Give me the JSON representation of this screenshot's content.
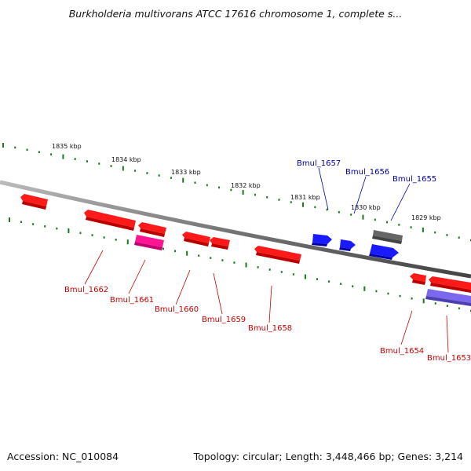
{
  "title": "Burkholderia multivorans ATCC 17616 chromosome 1, complete s...",
  "footer": {
    "accession": "Accession: NC_010084",
    "summary": "Topology: circular; Length: 3,448,466 bp; Genes: 3,214"
  },
  "colors": {
    "forward_label": "#0000aa",
    "reverse_label": "#cc0000",
    "gene_red": "#ff1a1a",
    "gene_blue": "#1a1aff",
    "gene_gray": "#666666",
    "gene_magenta": "#ff1493",
    "gene_slate": "#7b68ee",
    "tick_green": "#1a7a1a"
  },
  "kbp_labels": [
    "1835 kbp",
    "1834 kbp",
    "1833 kbp",
    "1832 kbp",
    "1831 kbp",
    "1830 kbp",
    "1829 kbp"
  ],
  "gene_labels": {
    "bmul_1657": "Bmul_1657",
    "bmul_1656": "Bmul_1656",
    "bmul_1655": "Bmul_1655",
    "bmul_1662": "Bmul_1662",
    "bmul_1661": "Bmul_1661",
    "bmul_1660": "Bmul_1660",
    "bmul_1659": "Bmul_1659",
    "bmul_1658": "Bmul_1658",
    "bmul_1654": "Bmul_1654",
    "bmul_1653": "Bmul_1653"
  }
}
